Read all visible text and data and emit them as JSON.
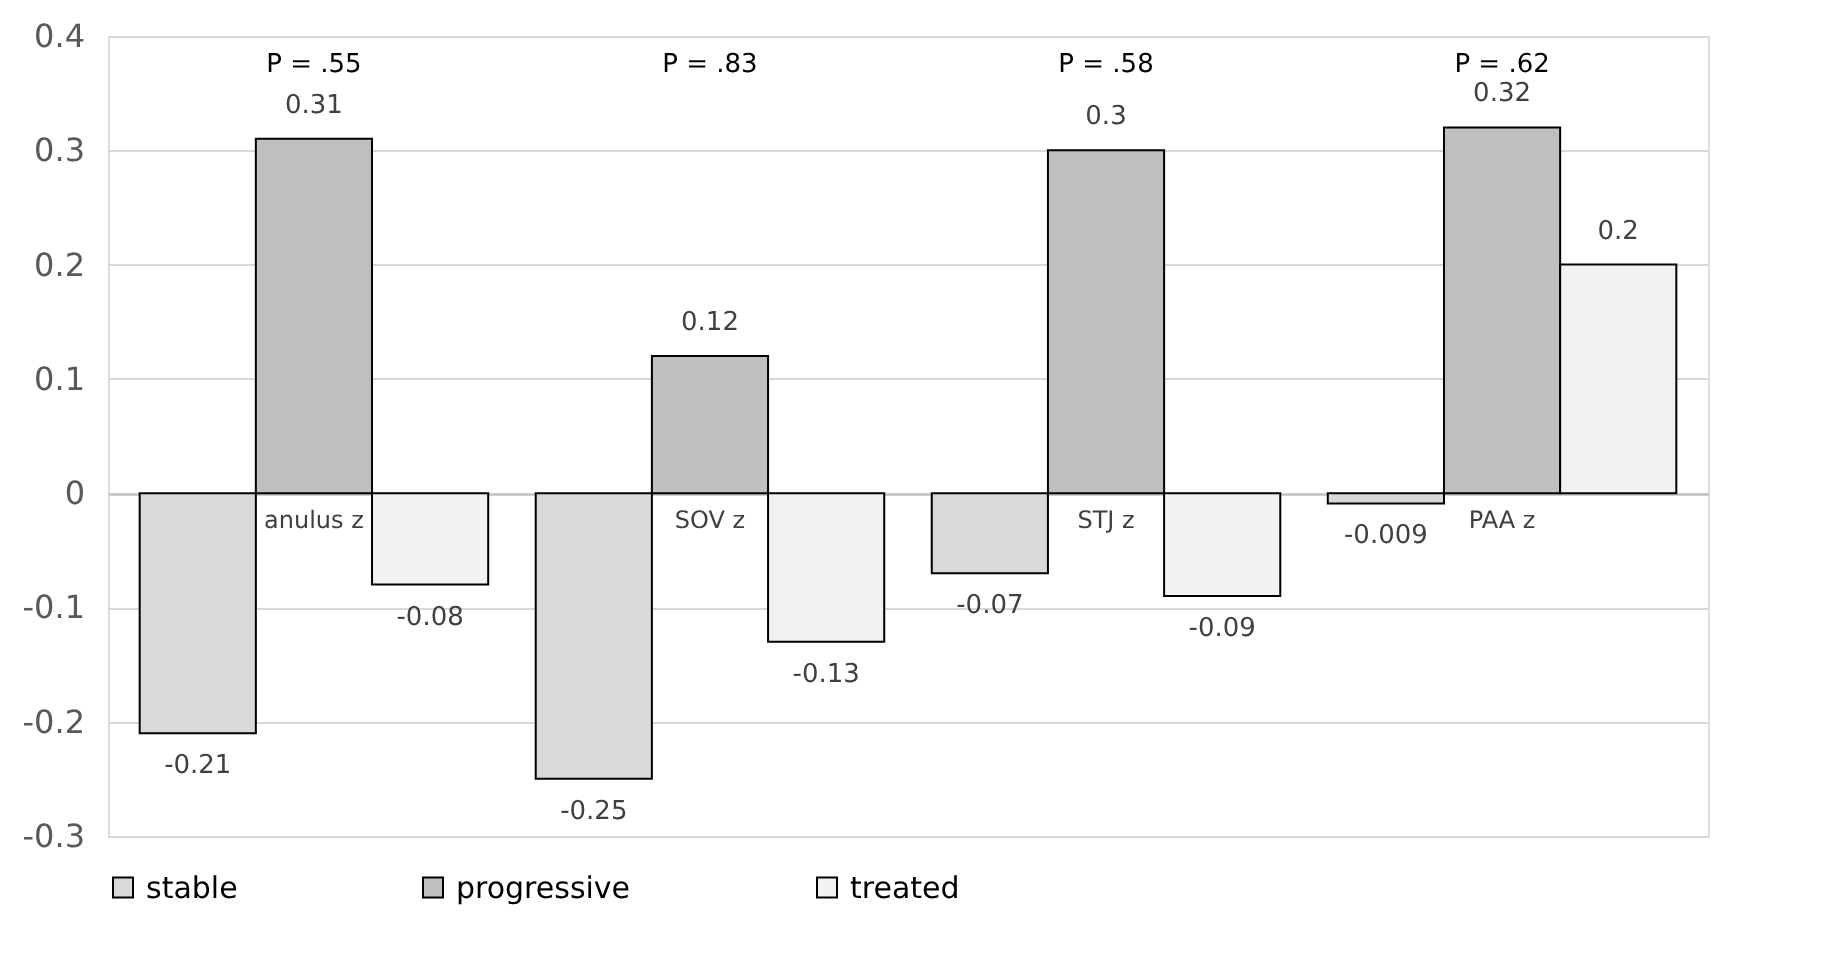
{
  "chart_data": {
    "type": "bar",
    "categories": [
      "anulus z",
      "SOV z",
      "STJ z",
      "PAA z"
    ],
    "series": [
      {
        "name": "stable",
        "color": "#d9d9d9",
        "values": [
          -0.21,
          -0.25,
          -0.07,
          -0.009
        ]
      },
      {
        "name": "progressive",
        "color": "#bfbfbf",
        "values": [
          0.31,
          0.12,
          0.3,
          0.32
        ]
      },
      {
        "name": "treated",
        "color": "#f2f2f2",
        "values": [
          -0.08,
          -0.13,
          -0.09,
          0.2
        ]
      }
    ],
    "ylim": [
      -0.3,
      0.4
    ],
    "yticks": [
      -0.3,
      -0.2,
      -0.1,
      0,
      0.1,
      0.2,
      0.3,
      0.4
    ],
    "grid": "y",
    "legend": "bottom",
    "data_labels": true,
    "annotations": [
      "P = .55",
      "P = .83",
      "P = .58",
      "P = .62"
    ]
  }
}
